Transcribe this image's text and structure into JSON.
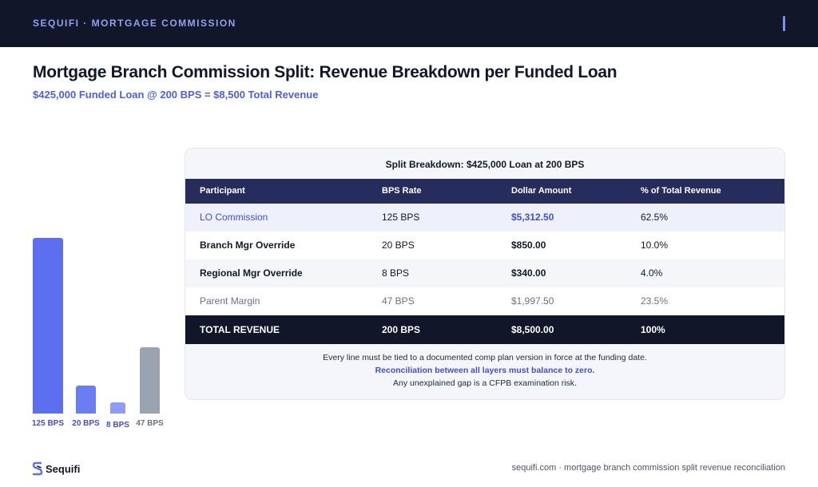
{
  "header": {
    "breadcrumb": "SEQUIFI · MORTGAGE COMMISSION"
  },
  "page": {
    "title": "Mortgage Branch Commission Split: Revenue Breakdown per Funded Loan",
    "subtitle": "$425,000 Funded Loan @ 200 BPS = $8,500 Total Revenue"
  },
  "chart_data": {
    "type": "bar",
    "categories": [
      "125 BPS",
      "20 BPS",
      "8 BPS",
      "47 BPS"
    ],
    "values": [
      125,
      20,
      8,
      47
    ],
    "colors": [
      "#5b6ff0",
      "#6a7df2",
      "#8e9cf5",
      "#9aa3b2"
    ],
    "label_colors": [
      "#3d4fd4",
      "#3d4fd4",
      "#3d4fd4",
      "#6b7280"
    ]
  },
  "table": {
    "title": "Split Breakdown: $425,000 Loan at 200 BPS",
    "columns": [
      "Participant",
      "BPS Rate",
      "Dollar Amount",
      "% of Total Revenue"
    ],
    "rows": [
      {
        "participant": "LO Commission",
        "bps": "125 BPS",
        "amount": "$5,312.50",
        "pct": "62.5%"
      },
      {
        "participant": "Branch Mgr Override",
        "bps": "20 BPS",
        "amount": "$850.00",
        "pct": "10.0%"
      },
      {
        "participant": "Regional Mgr Override",
        "bps": "8 BPS",
        "amount": "$340.00",
        "pct": "4.0%"
      },
      {
        "participant": "Parent Margin",
        "bps": "47 BPS",
        "amount": "$1,997.50",
        "pct": "23.5%"
      }
    ],
    "total": {
      "participant": "TOTAL REVENUE",
      "bps": "200 BPS",
      "amount": "$8,500.00",
      "pct": "100%"
    },
    "notes": [
      "Every line must be tied to a documented comp plan version in force at the funding date.",
      "Reconciliation between all layers must balance to zero.",
      "Any unexplained gap is a CFPB examination risk."
    ]
  },
  "footer": {
    "logo_text": "Sequifi",
    "logo_icon": "s-logo-icon",
    "tagline": "sequifi.com · mortgage branch commission split revenue reconciliation"
  },
  "colors": {
    "topbar": "#111729",
    "accent": "#4f5fd9",
    "table_header": "#262d5c",
    "total_row": "#111729"
  }
}
